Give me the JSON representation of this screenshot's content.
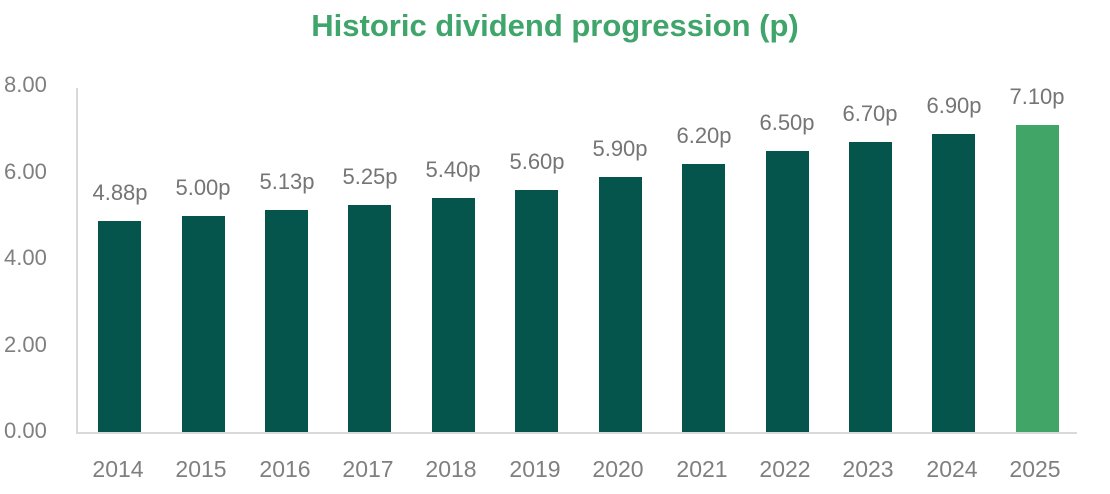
{
  "chart": {
    "title": "Historic dividend progression (p)"
  },
  "chart_data": {
    "type": "bar",
    "title": "Historic dividend progression (p)",
    "categories": [
      "2014",
      "2015",
      "2016",
      "2017",
      "2018",
      "2019",
      "2020",
      "2021",
      "2022",
      "2023",
      "2024",
      "2025"
    ],
    "values": [
      4.88,
      5.0,
      5.13,
      5.25,
      5.4,
      5.6,
      5.9,
      6.2,
      6.5,
      6.7,
      6.9,
      7.1
    ],
    "value_labels": [
      "4.88p",
      "5.00p",
      "5.13p",
      "5.25p",
      "5.40p",
      "5.60p",
      "5.90p",
      "6.20p",
      "6.50p",
      "6.70p",
      "6.90p",
      "7.10p"
    ],
    "xlabel": "",
    "ylabel": "",
    "ylim": [
      0,
      8
    ],
    "ytick_values": [
      0,
      2,
      4,
      6,
      8
    ],
    "ytick_labels": [
      "0.00",
      "2.00",
      "4.00",
      "6.00",
      "8.00"
    ],
    "grid": false,
    "legend": false,
    "highlight_index": 11,
    "colors": {
      "bar_default": "#06554C",
      "bar_highlight": "#41A567",
      "title_text": "#3FA56A",
      "value_label_text": "#757575",
      "axis_tick_text": "#7F7F7F",
      "axis_line": "#D9D9D9"
    }
  }
}
